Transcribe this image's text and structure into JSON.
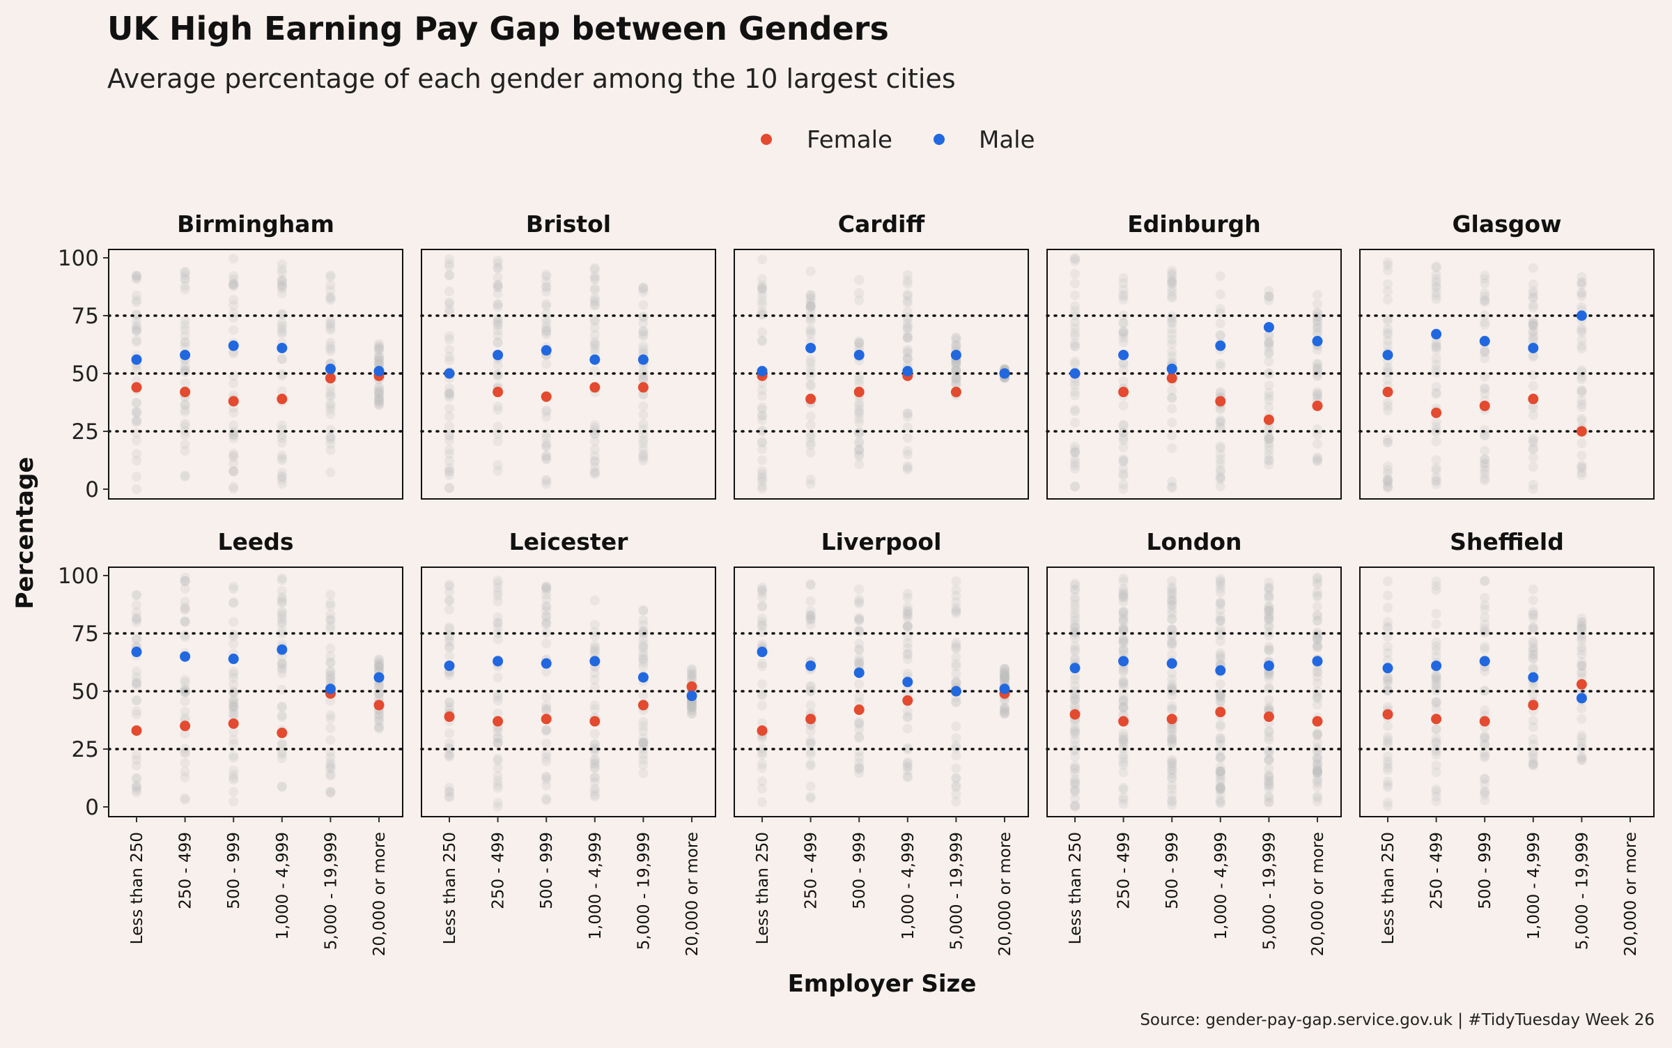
{
  "chart_data": {
    "type": "scatter",
    "title": "UK High Earning Pay Gap between Genders",
    "subtitle": "Average percentage of each gender among the 10 largest cities",
    "xlabel": "Employer Size",
    "ylabel": "Percentage",
    "caption": "Source: gender-pay-gap.service.gov.uk | #TidyTuesday Week 26",
    "legend": {
      "position": "top-center",
      "entries": [
        {
          "name": "Female",
          "color": "#e34a2f"
        },
        {
          "name": "Male",
          "color": "#2168e0"
        }
      ]
    },
    "colors": {
      "female": "#e34a2f",
      "male": "#2168e0",
      "background": "#f7f0ec",
      "raw_points": "#bdbdbd"
    },
    "categories": [
      "Less than 250",
      "250 - 499",
      "500 - 999",
      "1,000 - 4,999",
      "5,000 - 19,999",
      "20,000 or more"
    ],
    "ylim": [
      0,
      100
    ],
    "yticks": [
      0,
      25,
      50,
      75,
      100
    ],
    "reference_lines": [
      25,
      50,
      75
    ],
    "grid": false,
    "facet_layout": {
      "rows": 2,
      "cols": 5
    },
    "panels": [
      {
        "name": "Birmingham",
        "female": [
          44,
          42,
          38,
          39,
          48,
          49
        ],
        "male": [
          56,
          58,
          62,
          61,
          52,
          51
        ],
        "raw_ranges": [
          [
            0,
            100
          ],
          [
            0,
            100
          ],
          [
            0,
            100
          ],
          [
            2,
            98
          ],
          [
            5,
            93
          ],
          [
            36,
            63
          ]
        ]
      },
      {
        "name": "Bristol",
        "female": [
          50,
          42,
          40,
          44,
          44,
          null
        ],
        "male": [
          50,
          58,
          60,
          56,
          56,
          null
        ],
        "raw_ranges": [
          [
            0,
            100
          ],
          [
            0,
            100
          ],
          [
            2,
            97
          ],
          [
            2,
            100
          ],
          [
            10,
            90
          ],
          null
        ]
      },
      {
        "name": "Cardiff",
        "female": [
          49,
          39,
          42,
          49,
          42,
          50
        ],
        "male": [
          51,
          61,
          58,
          51,
          58,
          50
        ],
        "raw_ranges": [
          [
            0,
            100
          ],
          [
            0,
            97
          ],
          [
            6,
            96
          ],
          [
            6,
            93
          ],
          [
            40,
            66
          ],
          [
            48,
            52
          ]
        ]
      },
      {
        "name": "Edinburgh",
        "female": [
          50,
          42,
          48,
          38,
          30,
          36
        ],
        "male": [
          50,
          58,
          52,
          62,
          70,
          64
        ],
        "raw_ranges": [
          [
            0,
            100
          ],
          [
            0,
            100
          ],
          [
            0,
            97
          ],
          [
            0,
            95
          ],
          [
            10,
            88
          ],
          [
            12,
            87
          ]
        ]
      },
      {
        "name": "Glasgow",
        "female": [
          42,
          33,
          36,
          39,
          25,
          null
        ],
        "male": [
          58,
          67,
          64,
          61,
          75,
          null
        ],
        "raw_ranges": [
          [
            0,
            100
          ],
          [
            0,
            100
          ],
          [
            0,
            97
          ],
          [
            0,
            97
          ],
          [
            6,
            93
          ],
          null
        ]
      },
      {
        "name": "Leeds",
        "female": [
          33,
          35,
          36,
          32,
          49,
          44
        ],
        "male": [
          67,
          65,
          64,
          68,
          51,
          56
        ],
        "raw_ranges": [
          [
            3,
            97
          ],
          [
            0,
            100
          ],
          [
            2,
            97
          ],
          [
            2,
            100
          ],
          [
            5,
            95
          ],
          [
            33,
            65
          ]
        ]
      },
      {
        "name": "Leicester",
        "female": [
          39,
          37,
          38,
          37,
          44,
          52
        ],
        "male": [
          61,
          63,
          62,
          63,
          56,
          48
        ],
        "raw_ranges": [
          [
            4,
            96
          ],
          [
            0,
            100
          ],
          [
            2,
            97
          ],
          [
            2,
            96
          ],
          [
            12,
            88
          ],
          [
            40,
            60
          ]
        ]
      },
      {
        "name": "Liverpool",
        "female": [
          33,
          38,
          42,
          46,
          50,
          49
        ],
        "male": [
          67,
          61,
          58,
          54,
          50,
          51
        ],
        "raw_ranges": [
          [
            2,
            96
          ],
          [
            0,
            100
          ],
          [
            0,
            96
          ],
          [
            6,
            94
          ],
          [
            2,
            98
          ],
          [
            40,
            60
          ]
        ]
      },
      {
        "name": "London",
        "female": [
          40,
          37,
          38,
          41,
          39,
          37
        ],
        "male": [
          60,
          63,
          62,
          59,
          61,
          63
        ],
        "raw_ranges": [
          [
            0,
            100
          ],
          [
            0,
            100
          ],
          [
            0,
            100
          ],
          [
            0,
            100
          ],
          [
            0,
            100
          ],
          [
            0,
            100
          ]
        ]
      },
      {
        "name": "Sheffield",
        "female": [
          40,
          38,
          37,
          44,
          53,
          null
        ],
        "male": [
          60,
          61,
          63,
          56,
          47,
          null
        ],
        "raw_ranges": [
          [
            0,
            100
          ],
          [
            0,
            98
          ],
          [
            2,
            98
          ],
          [
            2,
            96
          ],
          [
            18,
            82
          ],
          null
        ]
      }
    ]
  }
}
